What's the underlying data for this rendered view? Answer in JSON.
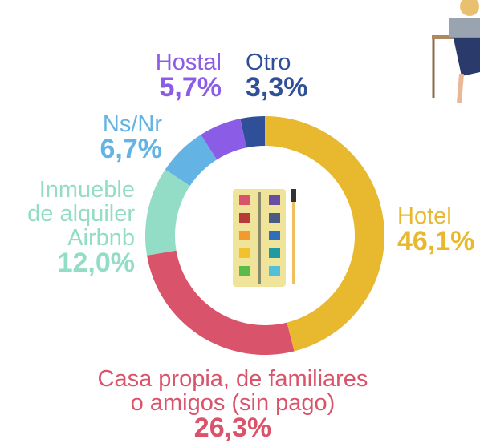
{
  "chart_data": {
    "type": "donut",
    "categories": [
      "Hotel",
      "Casa propia, de familiares\no amigos (sin pago)",
      "Inmueble\nde alquiler\nAirbnb",
      "Ns/Nr",
      "Hostal",
      "Otro"
    ],
    "values": [
      46.1,
      26.3,
      12.0,
      6.7,
      5.7,
      3.3
    ],
    "value_labels": [
      "46,1%",
      "26,3%",
      "12,0%",
      "6,7%",
      "5,7%",
      "3,3%"
    ],
    "colors": [
      "#e8b82f",
      "#d9536b",
      "#93dcc5",
      "#63b3e5",
      "#8b5de6",
      "#2f4f98"
    ]
  }
}
